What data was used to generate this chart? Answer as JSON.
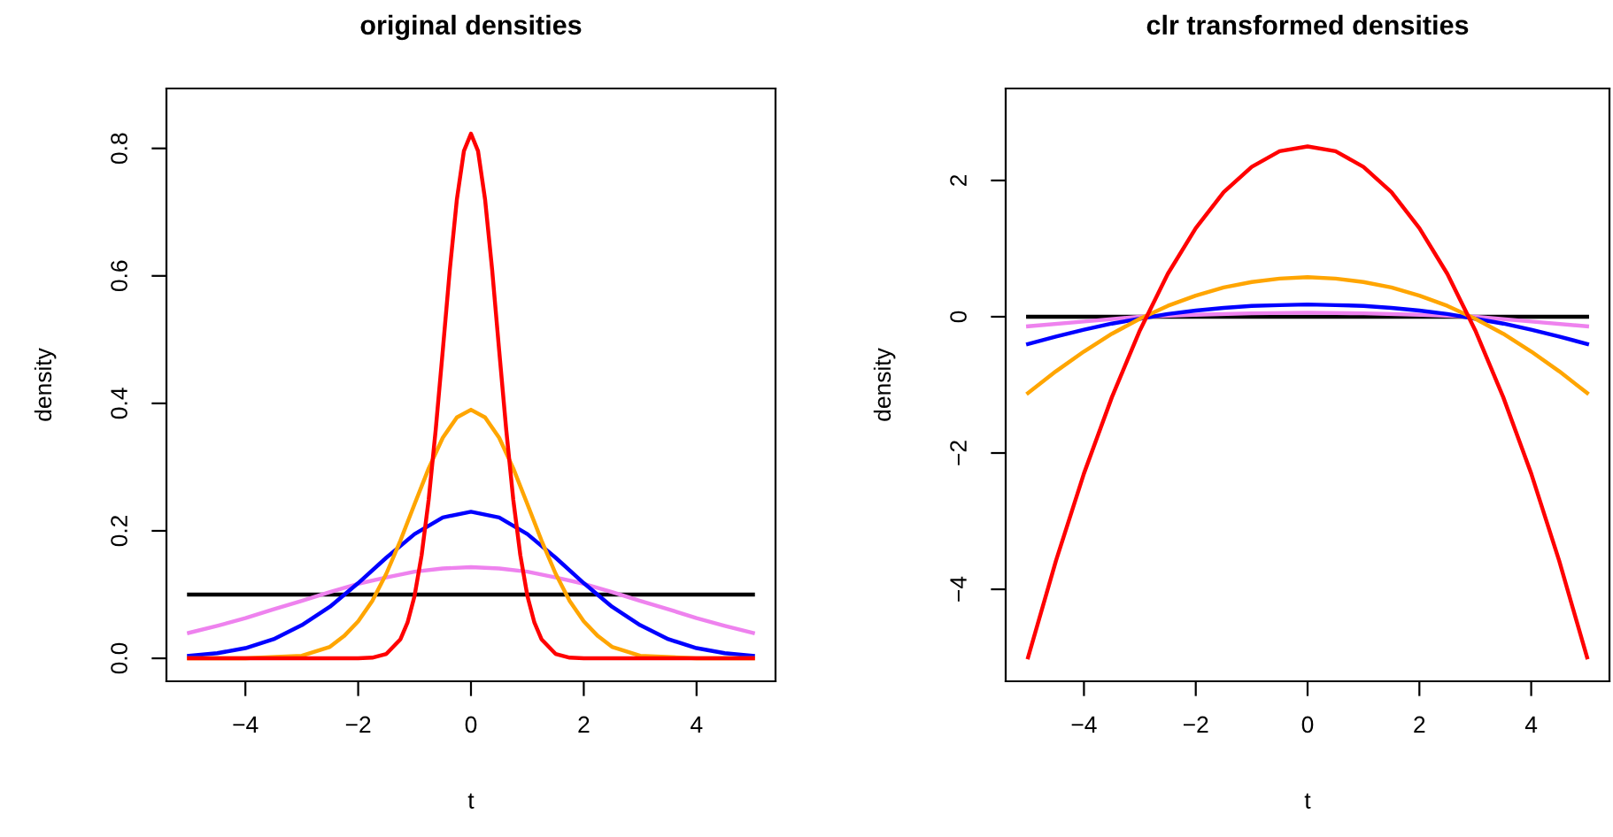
{
  "chart_data": [
    {
      "type": "line",
      "title": "original densities",
      "xlabel": "t",
      "ylabel": "density",
      "xlim": [
        -5.4,
        5.4
      ],
      "ylim": [
        -0.036,
        0.894
      ],
      "xticks": [
        -4,
        -2,
        0,
        2,
        4
      ],
      "yticks": [
        {
          "value": 0,
          "label": "0.0"
        },
        0.2,
        0.4,
        0.6,
        0.8
      ],
      "marker": "none",
      "line_style": "solid",
      "series": [
        {
          "color": "#000000",
          "x": [
            -5,
            5
          ],
          "values": [
            0.1,
            0.1
          ]
        },
        {
          "color": "#ee82ee",
          "x": [
            -5,
            -4.5,
            -4,
            -3.5,
            -3,
            -2.5,
            -2,
            -1.5,
            -1,
            -0.5,
            0,
            0.5,
            1,
            1.5,
            2,
            2.5,
            3,
            3.5,
            4,
            4.5,
            5
          ],
          "values": [
            0.04,
            0.051,
            0.063,
            0.077,
            0.09,
            0.104,
            0.117,
            0.127,
            0.136,
            0.141,
            0.143,
            0.141,
            0.136,
            0.127,
            0.117,
            0.104,
            0.09,
            0.077,
            0.063,
            0.051,
            0.04
          ]
        },
        {
          "color": "#0000ff",
          "x": [
            -5,
            -4.5,
            -4,
            -3.5,
            -3,
            -2.5,
            -2,
            -1.5,
            -1,
            -0.5,
            0,
            0.5,
            1,
            1.5,
            2,
            2.5,
            3,
            3.5,
            4,
            4.5,
            5
          ],
          "values": [
            0.004,
            0.008,
            0.016,
            0.03,
            0.052,
            0.081,
            0.118,
            0.158,
            0.195,
            0.221,
            0.23,
            0.221,
            0.195,
            0.158,
            0.118,
            0.081,
            0.052,
            0.03,
            0.016,
            0.008,
            0.004
          ]
        },
        {
          "color": "#ffa500",
          "x": [
            -5,
            -4,
            -3,
            -2.5,
            -2.25,
            -2,
            -1.75,
            -1.5,
            -1.25,
            -1,
            -0.75,
            -0.5,
            -0.25,
            0,
            0.25,
            0.5,
            0.75,
            1,
            1.25,
            1.5,
            1.75,
            2,
            2.25,
            2.5,
            3,
            4,
            5
          ],
          "values": [
            0,
            0,
            0.004,
            0.018,
            0.035,
            0.058,
            0.09,
            0.133,
            0.185,
            0.242,
            0.298,
            0.346,
            0.378,
            0.39,
            0.378,
            0.346,
            0.298,
            0.242,
            0.185,
            0.133,
            0.09,
            0.058,
            0.035,
            0.018,
            0.004,
            0,
            0
          ]
        },
        {
          "color": "#ff0000",
          "x": [
            -5,
            -2,
            -1.75,
            -1.5,
            -1.25,
            -1.125,
            -1,
            -0.875,
            -0.75,
            -0.625,
            -0.5,
            -0.375,
            -0.25,
            -0.125,
            0,
            0.125,
            0.25,
            0.375,
            0.5,
            0.625,
            0.75,
            0.875,
            1,
            1.125,
            1.25,
            1.5,
            1.75,
            2,
            5
          ],
          "values": [
            0,
            0,
            0.001,
            0.007,
            0.03,
            0.056,
            0.098,
            0.162,
            0.249,
            0.359,
            0.483,
            0.61,
            0.72,
            0.796,
            0.823,
            0.796,
            0.72,
            0.61,
            0.483,
            0.359,
            0.249,
            0.162,
            0.098,
            0.056,
            0.03,
            0.007,
            0.001,
            0,
            0
          ]
        }
      ]
    },
    {
      "type": "line",
      "title": "clr transformed densities",
      "xlabel": "t",
      "ylabel": "density",
      "xlim": [
        -5.4,
        5.4
      ],
      "ylim": [
        -5.35,
        3.35
      ],
      "xticks": [
        -4,
        -2,
        0,
        2,
        4
      ],
      "yticks": [
        -4,
        -2,
        0,
        2
      ],
      "marker": "none",
      "line_style": "solid",
      "series": [
        {
          "color": "#000000",
          "x": [
            -5,
            5
          ],
          "values": [
            0,
            0
          ]
        },
        {
          "color": "#ee82ee",
          "x": [
            -5,
            -4,
            -3,
            -2,
            -1,
            0,
            1,
            2,
            3,
            4,
            5
          ],
          "values": [
            -0.14,
            -0.07,
            0.0,
            0.03,
            0.05,
            0.06,
            0.05,
            0.03,
            0.0,
            -0.07,
            -0.14
          ]
        },
        {
          "color": "#0000ff",
          "x": [
            -5,
            -4.5,
            -4,
            -3.5,
            -3,
            -2.5,
            -2,
            -1.5,
            -1,
            -0.5,
            0,
            0.5,
            1,
            1.5,
            2,
            2.5,
            3,
            3.5,
            4,
            4.5,
            5
          ],
          "values": [
            -0.4,
            -0.29,
            -0.19,
            -0.1,
            -0.03,
            0.04,
            0.09,
            0.13,
            0.16,
            0.17,
            0.18,
            0.17,
            0.16,
            0.13,
            0.09,
            0.04,
            -0.03,
            -0.1,
            -0.19,
            -0.29,
            -0.4
          ]
        },
        {
          "color": "#ffa500",
          "x": [
            -5,
            -4.5,
            -4,
            -3.5,
            -3,
            -2.5,
            -2,
            -1.5,
            -1,
            -0.5,
            0,
            0.5,
            1,
            1.5,
            2,
            2.5,
            3,
            3.5,
            4,
            4.5,
            5
          ],
          "values": [
            -1.12,
            -0.8,
            -0.51,
            -0.25,
            -0.03,
            0.16,
            0.31,
            0.43,
            0.51,
            0.56,
            0.58,
            0.56,
            0.51,
            0.43,
            0.31,
            0.16,
            -0.03,
            -0.25,
            -0.51,
            -0.8,
            -1.12
          ]
        },
        {
          "color": "#ff0000",
          "x": [
            -5,
            -4.5,
            -4,
            -3.5,
            -3,
            -2.5,
            -2,
            -1.5,
            -1,
            -0.5,
            0,
            0.5,
            1,
            1.5,
            2,
            2.5,
            3,
            3.5,
            4,
            4.5,
            5
          ],
          "values": [
            -5.0,
            -3.58,
            -2.3,
            -1.18,
            -0.2,
            0.63,
            1.3,
            1.83,
            2.2,
            2.43,
            2.5,
            2.43,
            2.2,
            1.83,
            1.3,
            0.63,
            -0.2,
            -1.18,
            -2.3,
            -3.58,
            -5.0
          ]
        }
      ]
    }
  ]
}
